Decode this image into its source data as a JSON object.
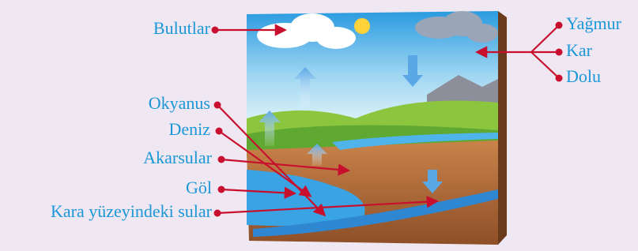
{
  "labels": {
    "left": [
      "Bulutlar",
      "Okyanus",
      "Deniz",
      "Akarsular",
      "Göl",
      "Kara yüzeyindeki sular"
    ],
    "right": [
      "Yağmur",
      "Kar",
      "Dolu"
    ]
  }
}
